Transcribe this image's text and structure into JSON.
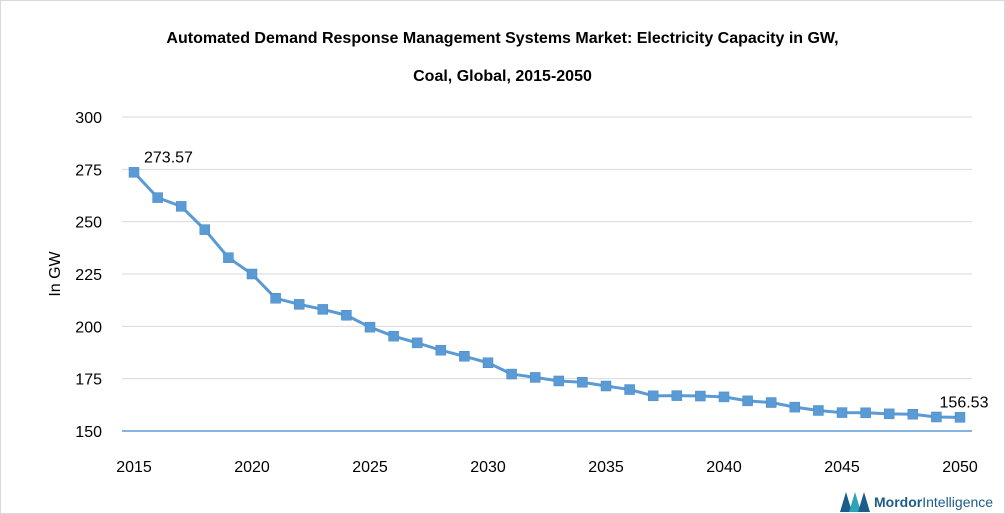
{
  "chart_data": {
    "type": "line",
    "title_line_1": "Automated Demand Response Management Systems Market: Electricity Capacity in GW,",
    "title_line_2": "Coal, Global, 2015-2050",
    "ylabel": "In GW",
    "xlabel": "",
    "ylim": [
      150,
      300
    ],
    "yticks": [
      "150",
      "175",
      "200",
      "225",
      "250",
      "275",
      "300"
    ],
    "xticks": [
      "2015",
      "2020",
      "2025",
      "2030",
      "2035",
      "2040",
      "2045",
      "2050"
    ],
    "grid": true,
    "legend": "none",
    "line_color": "#5b9bd5",
    "series": [
      {
        "x": [
          2015,
          2016,
          2017,
          2018,
          2019,
          2020,
          2021,
          2022,
          2023,
          2024,
          2025,
          2026,
          2027,
          2028,
          2029,
          2030,
          2031,
          2032,
          2033,
          2034,
          2035,
          2036,
          2037,
          2038,
          2039,
          2040,
          2041,
          2042,
          2043,
          2044,
          2045,
          2046,
          2047,
          2048,
          2049,
          2050
        ],
        "values": [
          273.57,
          261.5,
          257.3,
          246.2,
          232.8,
          225.0,
          213.4,
          210.5,
          208.1,
          205.3,
          199.6,
          195.3,
          192.1,
          188.6,
          185.7,
          182.6,
          177.2,
          175.6,
          173.9,
          173.3,
          171.5,
          169.8,
          166.8,
          166.9,
          166.7,
          166.3,
          164.4,
          163.6,
          161.4,
          159.8,
          158.8,
          158.7,
          158.2,
          158.0,
          156.7,
          156.53
        ]
      }
    ],
    "data_labels": [
      {
        "index": 0,
        "text": "273.57"
      },
      {
        "index": 35,
        "text": "156.53"
      }
    ]
  },
  "logo": {
    "text_1": "Mordor",
    "text_2": "Intelligence"
  }
}
